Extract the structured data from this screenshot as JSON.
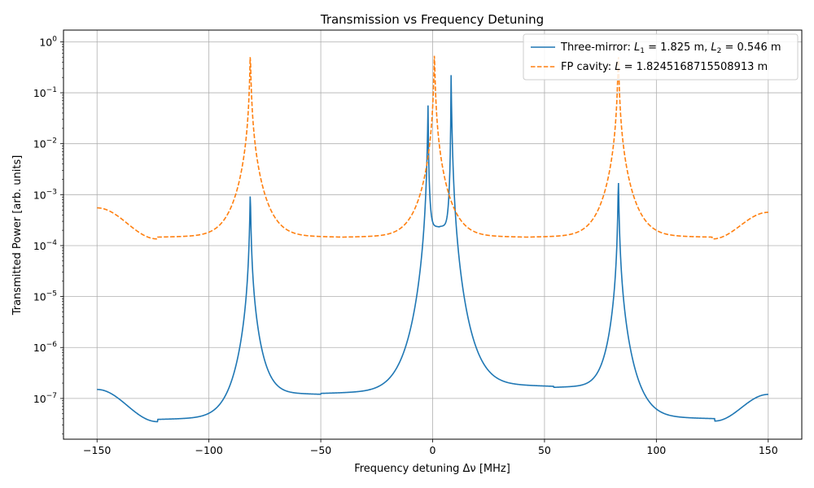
{
  "chart_data": {
    "type": "line",
    "title": "Transmission vs Frequency Detuning",
    "xlabel": "Frequency detuning Δν [MHz]",
    "ylabel": "Transmitted Power [arb. units]",
    "xlim": [
      -165,
      165
    ],
    "ylim_log10": [
      -7.8,
      0.23
    ],
    "yscale": "log",
    "grid": true,
    "legend_position": "top-right",
    "x_ticks": [
      -150,
      -100,
      -50,
      0,
      50,
      100,
      150
    ],
    "x_tick_labels": [
      "−150",
      "−100",
      "−50",
      "0",
      "50",
      "100",
      "150"
    ],
    "y_tick_exponents": [
      -7,
      -6,
      -5,
      -4,
      -3,
      -2,
      -1,
      0
    ],
    "series": [
      {
        "name": "Three-mirror: L₁ = 1.825 m, L₂ = 0.546 m",
        "legend_parts": {
          "pre": "Three-mirror: ",
          "s1": "L",
          "sub1": "1",
          "mid": " = 1.825 m, ",
          "s2": "L",
          "sub2": "2",
          "post": " = 0.546 m"
        },
        "color": "#1f77b4",
        "style": "solid",
        "peaks": [
          {
            "x0": -81.5,
            "peak": 0.0014
          },
          {
            "x0": -2.0,
            "peak": 0.09
          },
          {
            "x0": 8.2,
            "peak": 0.34
          },
          {
            "x0": 83.0,
            "peak": 0.0026
          }
        ],
        "minima": [
          {
            "x": -123,
            "y": 3.5e-08
          },
          {
            "x": -50,
            "y": 1.1e-07
          },
          {
            "x": 3.0,
            "y": 0.00022
          },
          {
            "x": 54,
            "y": 1.5e-07
          },
          {
            "x": 126,
            "y": 3.6e-08
          }
        ],
        "endpoints": [
          {
            "x": -150,
            "y": 1.5e-07
          },
          {
            "x": 150,
            "y": 1.2e-07
          }
        ]
      },
      {
        "name": "FP cavity: L = 1.8245168715508913 m",
        "legend_parts": {
          "pre": "FP cavity: ",
          "s1": "L",
          "post": " = 1.8245168715508913 m"
        },
        "color": "#ff7f0e",
        "style": "dashed",
        "peaks": [
          {
            "x0": -81.5,
            "peak": 0.7
          },
          {
            "x0": 0.8,
            "peak": 0.7
          },
          {
            "x0": 83.0,
            "peak": 0.7
          }
        ],
        "minima": [
          {
            "x": -123,
            "y": 0.000135
          },
          {
            "x": -40,
            "y": 0.000135
          },
          {
            "x": 42,
            "y": 0.000135
          },
          {
            "x": 125,
            "y": 0.000135
          }
        ],
        "endpoints": [
          {
            "x": -150,
            "y": 0.00055
          },
          {
            "x": 150,
            "y": 0.00045
          }
        ]
      }
    ]
  }
}
